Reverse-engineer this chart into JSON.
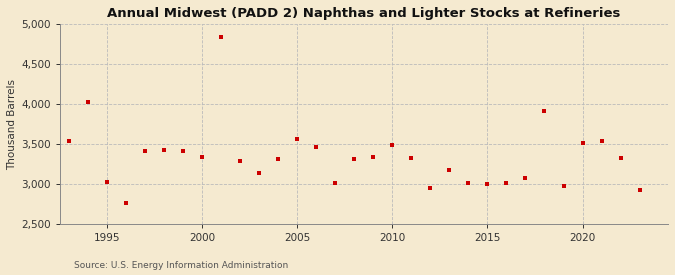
{
  "title": "Annual Midwest (PADD 2) Naphthas and Lighter Stocks at Refineries",
  "ylabel": "Thousand Barrels",
  "source": "Source: U.S. Energy Information Administration",
  "background_color": "#f5ead0",
  "plot_bg_color": "#f5ead0",
  "dot_color": "#cc0000",
  "ylim": [
    2500,
    5000
  ],
  "yticks": [
    2500,
    3000,
    3500,
    4000,
    4500,
    5000
  ],
  "xticks": [
    1995,
    2000,
    2005,
    2010,
    2015,
    2020
  ],
  "years": [
    1993,
    1994,
    1995,
    1996,
    1997,
    1998,
    1999,
    2000,
    2001,
    2002,
    2003,
    2004,
    2005,
    2006,
    2007,
    2008,
    2009,
    2010,
    2011,
    2012,
    2013,
    2014,
    2015,
    2016,
    2017,
    2018,
    2019,
    2020,
    2021,
    2022,
    2023
  ],
  "values": [
    3540,
    4020,
    3030,
    2760,
    3420,
    3430,
    3420,
    3340,
    4840,
    3290,
    3140,
    3310,
    3570,
    3460,
    3020,
    3320,
    3340,
    3490,
    3330,
    2950,
    3180,
    3020,
    3000,
    3010,
    3080,
    3910,
    2980,
    3510,
    3540,
    3330,
    2930
  ],
  "xlim": [
    1992.5,
    2024.5
  ],
  "title_fontsize": 9.5,
  "ylabel_fontsize": 7.5,
  "tick_fontsize": 7.5,
  "source_fontsize": 6.5,
  "dot_size": 12,
  "grid_color": "#bbbbbb",
  "grid_linewidth": 0.6,
  "spine_color": "#888888"
}
